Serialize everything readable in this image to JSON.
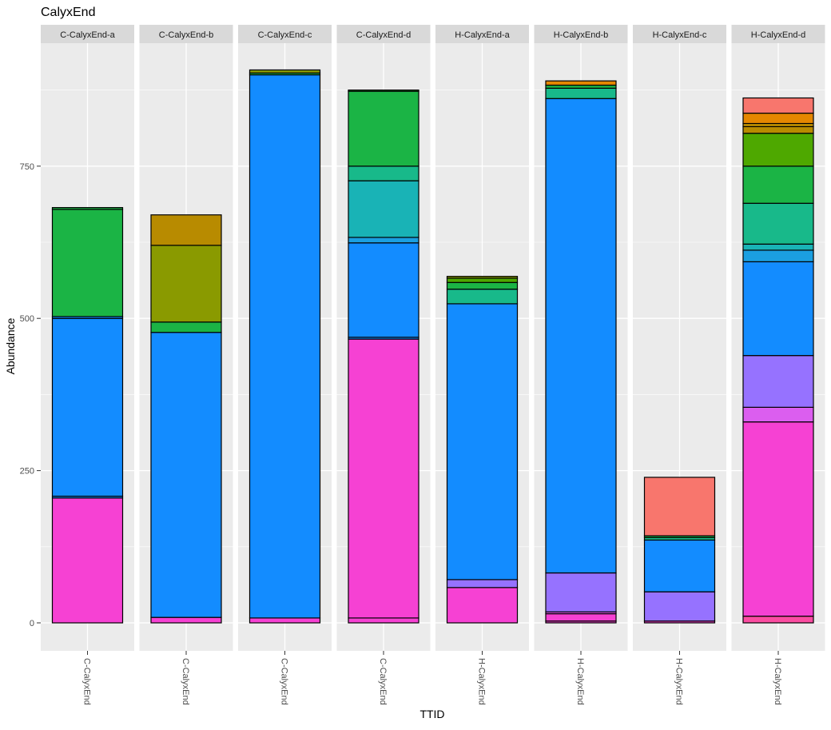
{
  "chart_data": {
    "type": "bar",
    "stacked": true,
    "faceted": true,
    "title": "CalyxEnd",
    "xlabel": "TTID",
    "ylabel": "Abundance",
    "ylim": [
      -45,
      915
    ],
    "yticks": [
      0,
      250,
      500,
      750
    ],
    "grid": true,
    "legend": "none",
    "colors": {
      "c01": "#f8766d",
      "c02": "#e58700",
      "c03": "#c99800",
      "c04": "#b88b00",
      "c05": "#8a9a00",
      "c06": "#4ea800",
      "c07": "#1bb445",
      "c08": "#18b98a",
      "c09": "#19b3b6",
      "c10": "#1b9fe1",
      "c11": "#138cff",
      "c12": "#9672ff",
      "c13": "#db5eef",
      "c14": "#f641d3",
      "c15": "#fb4ca1",
      "c16": "#ff5fa0"
    },
    "facets": [
      {
        "label": "C-CalyxEnd-a",
        "category": "C-CalyxEnd",
        "segments": [
          {
            "value": 205,
            "color": "c14"
          },
          {
            "value": 3,
            "color": "c11"
          },
          {
            "value": 292,
            "color": "c11"
          },
          {
            "value": 3,
            "color": "c11"
          },
          {
            "value": 176,
            "color": "c07"
          },
          {
            "value": 3,
            "color": "c07"
          }
        ]
      },
      {
        "label": "C-CalyxEnd-b",
        "category": "C-CalyxEnd",
        "segments": [
          {
            "value": 9,
            "color": "c14"
          },
          {
            "value": 468,
            "color": "c11"
          },
          {
            "value": 17,
            "color": "c07"
          },
          {
            "value": 126,
            "color": "c05"
          },
          {
            "value": 50,
            "color": "c04"
          }
        ]
      },
      {
        "label": "C-CalyxEnd-c",
        "category": "C-CalyxEnd",
        "segments": [
          {
            "value": 8,
            "color": "c14"
          },
          {
            "value": 892,
            "color": "c11"
          },
          {
            "value": 3,
            "color": "c07"
          },
          {
            "value": 5,
            "color": "c05"
          }
        ]
      },
      {
        "label": "C-CalyxEnd-d",
        "category": "C-CalyxEnd",
        "segments": [
          {
            "value": 8,
            "color": "c14"
          },
          {
            "value": 458,
            "color": "c14"
          },
          {
            "value": 3,
            "color": "c11"
          },
          {
            "value": 155,
            "color": "c11"
          },
          {
            "value": 9,
            "color": "c10"
          },
          {
            "value": 93,
            "color": "c09"
          },
          {
            "value": 24,
            "color": "c08"
          },
          {
            "value": 123,
            "color": "c07"
          },
          {
            "value": 2,
            "color": "c07"
          }
        ]
      },
      {
        "label": "H-CalyxEnd-a",
        "category": "H-CalyxEnd",
        "segments": [
          {
            "value": 58,
            "color": "c14"
          },
          {
            "value": 13,
            "color": "c12"
          },
          {
            "value": 453,
            "color": "c11"
          },
          {
            "value": 24,
            "color": "c08"
          },
          {
            "value": 11,
            "color": "c07"
          },
          {
            "value": 7,
            "color": "c06"
          },
          {
            "value": 3,
            "color": "c05"
          }
        ]
      },
      {
        "label": "H-CalyxEnd-b",
        "category": "H-CalyxEnd",
        "segments": [
          {
            "value": 3,
            "color": "c14"
          },
          {
            "value": 12,
            "color": "c14"
          },
          {
            "value": 3,
            "color": "c13"
          },
          {
            "value": 64,
            "color": "c12"
          },
          {
            "value": 779,
            "color": "c11"
          },
          {
            "value": 17,
            "color": "c08"
          },
          {
            "value": 5,
            "color": "c07"
          },
          {
            "value": 7,
            "color": "c02"
          }
        ]
      },
      {
        "label": "H-CalyxEnd-c",
        "category": "H-CalyxEnd",
        "segments": [
          {
            "value": 3,
            "color": "c14"
          },
          {
            "value": 48,
            "color": "c12"
          },
          {
            "value": 85,
            "color": "c11"
          },
          {
            "value": 4,
            "color": "c08"
          },
          {
            "value": 3,
            "color": "c07"
          },
          {
            "value": 96,
            "color": "c01"
          }
        ]
      },
      {
        "label": "H-CalyxEnd-d",
        "category": "H-CalyxEnd",
        "segments": [
          {
            "value": 11,
            "color": "c15"
          },
          {
            "value": 319,
            "color": "c14"
          },
          {
            "value": 24,
            "color": "c13"
          },
          {
            "value": 85,
            "color": "c12"
          },
          {
            "value": 154,
            "color": "c11"
          },
          {
            "value": 19,
            "color": "c10"
          },
          {
            "value": 10,
            "color": "c09"
          },
          {
            "value": 67,
            "color": "c08"
          },
          {
            "value": 61,
            "color": "c07"
          },
          {
            "value": 54,
            "color": "c06"
          },
          {
            "value": 11,
            "color": "c04"
          },
          {
            "value": 5,
            "color": "c03"
          },
          {
            "value": 17,
            "color": "c02"
          },
          {
            "value": 25,
            "color": "c01"
          }
        ]
      }
    ]
  }
}
